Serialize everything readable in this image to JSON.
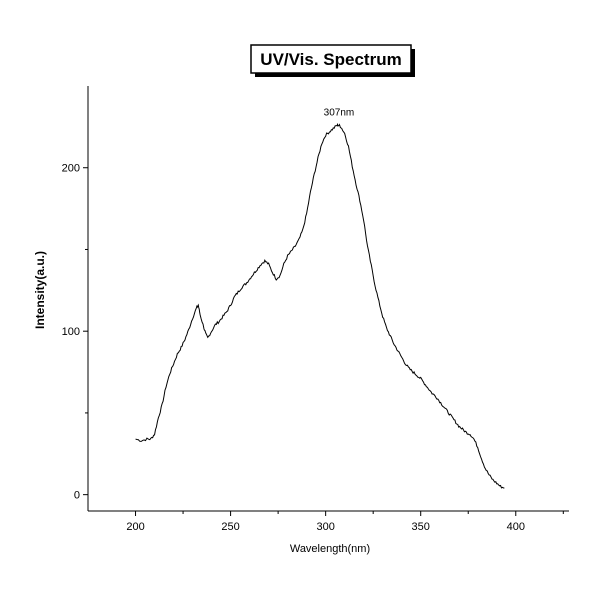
{
  "chart_data": {
    "type": "line",
    "title": "UV/Vis. Spectrum",
    "xlabel": "Wavelength(nm)",
    "ylabel": "Intensity(a.u.)",
    "xlim": [
      175,
      428
    ],
    "ylim": [
      -10,
      250
    ],
    "xticks": [
      200,
      250,
      300,
      350,
      400
    ],
    "yticks": [
      0,
      100,
      200
    ],
    "xtick_labels": [
      "200",
      "250",
      "300",
      "350",
      "400"
    ],
    "ytick_labels": [
      "0",
      "100",
      "200"
    ],
    "annotation": {
      "text": "307nm",
      "x": 307,
      "y": 232
    },
    "grid": false,
    "series": [
      {
        "x": [
          200,
          203,
          206,
          208,
          210,
          212,
          214,
          216,
          218,
          220,
          222,
          224,
          226,
          228,
          230,
          232,
          233,
          234,
          236,
          237,
          238,
          240,
          242,
          244,
          246,
          248,
          250,
          252,
          254,
          256,
          258,
          260,
          262,
          264,
          266,
          268,
          270,
          272,
          274,
          276,
          278,
          280,
          282,
          284,
          286,
          288,
          290,
          292,
          294,
          296,
          298,
          300,
          302,
          304,
          306,
          307,
          308,
          310,
          312,
          314,
          316,
          318,
          320,
          322,
          324,
          326,
          328,
          330,
          332,
          334,
          336,
          338,
          340,
          342,
          344,
          346,
          348,
          350,
          352,
          354,
          356,
          358,
          360,
          362,
          364,
          366,
          368,
          370,
          372,
          374,
          376,
          378,
          380,
          382,
          384,
          386,
          388,
          390,
          392,
          394
        ],
        "y": [
          34,
          33,
          34,
          34,
          37,
          47,
          55,
          66,
          74,
          80,
          86,
          90,
          95,
          101,
          108,
          114,
          116,
          110,
          102,
          98,
          96,
          100,
          104,
          106,
          109,
          112,
          116,
          121,
          124,
          127,
          129,
          132,
          135,
          138,
          141,
          143,
          141,
          136,
          132,
          134,
          141,
          146,
          149,
          152,
          156,
          162,
          172,
          185,
          196,
          206,
          215,
          220,
          222,
          224,
          226,
          226,
          225,
          221,
          213,
          201,
          190,
          180,
          168,
          152,
          140,
          128,
          118,
          109,
          102,
          97,
          92,
          88,
          84,
          80,
          77,
          75,
          73,
          71,
          68,
          65,
          62,
          60,
          57,
          54,
          51,
          48,
          45,
          42,
          40,
          38,
          37,
          34,
          29,
          22,
          16,
          12,
          9,
          7,
          5,
          4
        ]
      }
    ]
  }
}
